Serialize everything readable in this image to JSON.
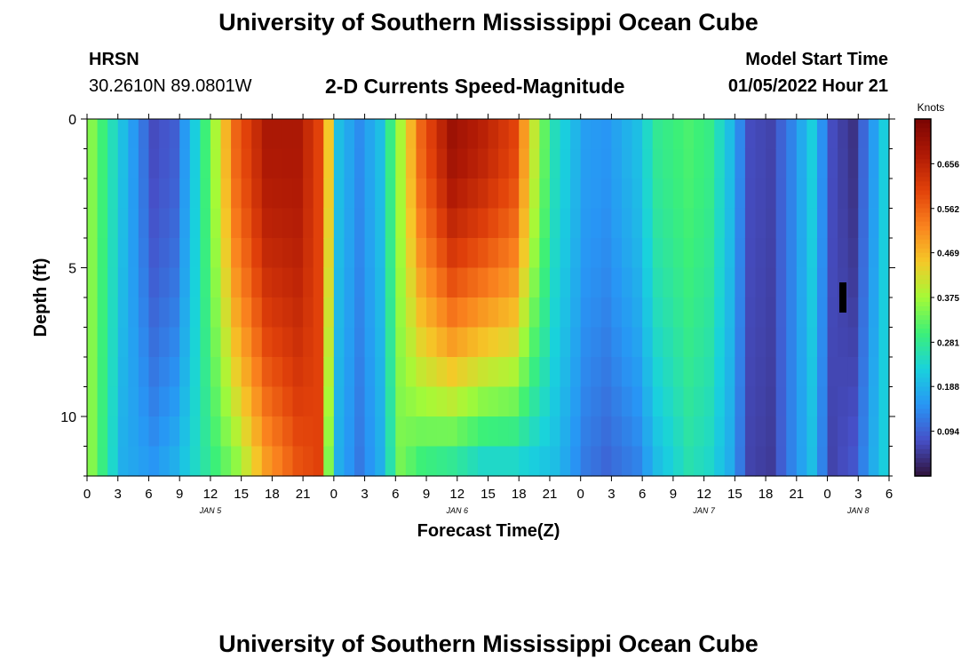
{
  "page": {
    "title": "University of Southern Mississippi Ocean Cube",
    "footer_title": "University of Southern Mississippi Ocean Cube",
    "station_name": "HRSN",
    "station_coords": "30.2610N  89.0801W",
    "model_start_label": "Model Start Time",
    "model_start_value": "01/05/2022 Hour 21"
  },
  "chart_data": {
    "type": "heatmap",
    "title": "2-D Currents Speed-Magnitude",
    "xlabel": "Forecast Time(Z)",
    "ylabel": "Depth (ft)",
    "ylim": [
      0,
      12
    ],
    "y_ticks": [
      "0",
      "5",
      "10"
    ],
    "x_ticks": [
      "0",
      "3",
      "6",
      "9",
      "12",
      "15",
      "18",
      "21",
      "0",
      "3",
      "6",
      "9",
      "12",
      "15",
      "18",
      "21",
      "0",
      "3",
      "6",
      "9",
      "12",
      "15",
      "18",
      "21",
      "0",
      "3",
      "6"
    ],
    "day_labels": [
      "JAN 5",
      "JAN 6",
      "JAN 7",
      "JAN 8"
    ],
    "colorbar": {
      "unit": "Knots",
      "ticks": [
        "0.656",
        "0.562",
        "0.469",
        "0.375",
        "0.281",
        "0.188",
        "0.094"
      ],
      "range": [
        0,
        0.75
      ]
    },
    "hours": 78,
    "depth_rows": 12,
    "column_profiles": [
      [
        0,
        0.35,
        0.35
      ],
      [
        3,
        0.2,
        0.18
      ],
      [
        6,
        0.07,
        0.15
      ],
      [
        8,
        0.09,
        0.18
      ],
      [
        10,
        0.22,
        0.24
      ],
      [
        12,
        0.38,
        0.3
      ],
      [
        14,
        0.56,
        0.36
      ],
      [
        17,
        0.68,
        0.5
      ],
      [
        20,
        0.68,
        0.58
      ],
      [
        22,
        0.6,
        0.6
      ],
      [
        23,
        0.45,
        0.35
      ],
      [
        24,
        0.2,
        0.18
      ],
      [
        26,
        0.14,
        0.12
      ],
      [
        28,
        0.2,
        0.18
      ],
      [
        30,
        0.38,
        0.34
      ],
      [
        32,
        0.56,
        0.3
      ],
      [
        35,
        0.7,
        0.28
      ],
      [
        38,
        0.66,
        0.24
      ],
      [
        41,
        0.6,
        0.24
      ],
      [
        43,
        0.4,
        0.22
      ],
      [
        45,
        0.25,
        0.2
      ],
      [
        48,
        0.16,
        0.12
      ],
      [
        50,
        0.15,
        0.1
      ],
      [
        53,
        0.2,
        0.13
      ],
      [
        55,
        0.28,
        0.2
      ],
      [
        58,
        0.31,
        0.26
      ],
      [
        60,
        0.29,
        0.24
      ],
      [
        62,
        0.2,
        0.18
      ],
      [
        64,
        0.07,
        0.06
      ],
      [
        66,
        0.06,
        0.05
      ],
      [
        68,
        0.13,
        0.13
      ],
      [
        70,
        0.22,
        0.2
      ],
      [
        72,
        0.07,
        0.06
      ],
      [
        74,
        0.04,
        0.08
      ],
      [
        76,
        0.16,
        0.18
      ],
      [
        77,
        0.22,
        0.22
      ]
    ]
  }
}
